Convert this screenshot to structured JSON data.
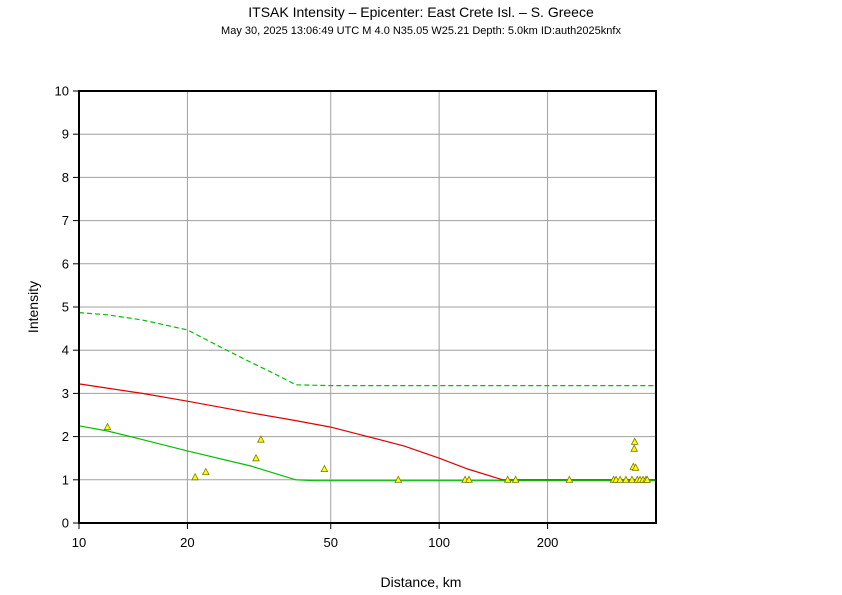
{
  "chart_data": {
    "type": "scatter",
    "title": "ITSAK Intensity –  Epicenter: East Crete Isl. – S. Greece",
    "subtitle": "May 30, 2025 13:06:49 UTC   M 4.0   N35.05 W25.21   Depth: 5.0km   ID:auth2025knfx",
    "xlabel": "Distance, km",
    "ylabel": "Intensity",
    "x_scale": "log",
    "xlim": [
      10,
      400
    ],
    "ylim": [
      0,
      10
    ],
    "x_ticks": [
      10,
      20,
      50,
      100,
      200
    ],
    "x_tick_labels": [
      "10",
      "20",
      "50",
      "100",
      "200"
    ],
    "y_ticks": [
      0,
      1,
      2,
      3,
      4,
      5,
      6,
      7,
      8,
      9,
      10
    ],
    "y_tick_labels": [
      "0",
      "1",
      "2",
      "3",
      "4",
      "5",
      "6",
      "7",
      "8",
      "9",
      "10"
    ],
    "grid": true,
    "colors": {
      "frame": "#000000",
      "grid": "#a0a0a0",
      "red_curve": "#e00000",
      "green_curve": "#00c000",
      "marker_fill": "#ffff00",
      "marker_edge": "#7a7a00"
    },
    "series": [
      {
        "style": "solid-red",
        "kind": "line",
        "x": [
          10,
          15,
          20,
          30,
          40,
          50,
          60,
          80,
          100,
          120,
          150,
          200,
          300,
          400
        ],
        "y": [
          3.22,
          3.0,
          2.82,
          2.55,
          2.37,
          2.22,
          2.05,
          1.78,
          1.5,
          1.25,
          1.0,
          1.0,
          1.0,
          1.0
        ]
      },
      {
        "style": "solid-green",
        "kind": "line",
        "x": [
          10,
          12,
          15,
          20,
          30,
          40,
          45,
          60,
          100,
          200,
          400
        ],
        "y": [
          2.25,
          2.13,
          1.93,
          1.67,
          1.32,
          1.0,
          0.98,
          0.98,
          0.98,
          0.98,
          0.98
        ]
      },
      {
        "style": "dashed-green",
        "kind": "line",
        "x": [
          10,
          12,
          15,
          20,
          25,
          30,
          35,
          40,
          50,
          100,
          200,
          400
        ],
        "y": [
          4.87,
          4.82,
          4.7,
          4.47,
          4.05,
          3.72,
          3.45,
          3.2,
          3.18,
          3.18,
          3.18,
          3.18
        ]
      },
      {
        "style": "triangle-markers",
        "kind": "scatter",
        "x": [
          12,
          21,
          22.5,
          31,
          32,
          48,
          77,
          118,
          121,
          155,
          163,
          230,
          305,
          310,
          318,
          330,
          343,
          346,
          349,
          348,
          351,
          355,
          361,
          368,
          375,
          378
        ],
        "y": [
          2.22,
          1.06,
          1.18,
          1.5,
          1.93,
          1.25,
          1.0,
          1.0,
          1.0,
          1.0,
          1.0,
          1.0,
          1.0,
          1.0,
          1.0,
          1.0,
          1.0,
          1.3,
          1.88,
          1.72,
          1.28,
          1.0,
          1.0,
          1.0,
          1.0,
          1.0
        ]
      }
    ]
  }
}
